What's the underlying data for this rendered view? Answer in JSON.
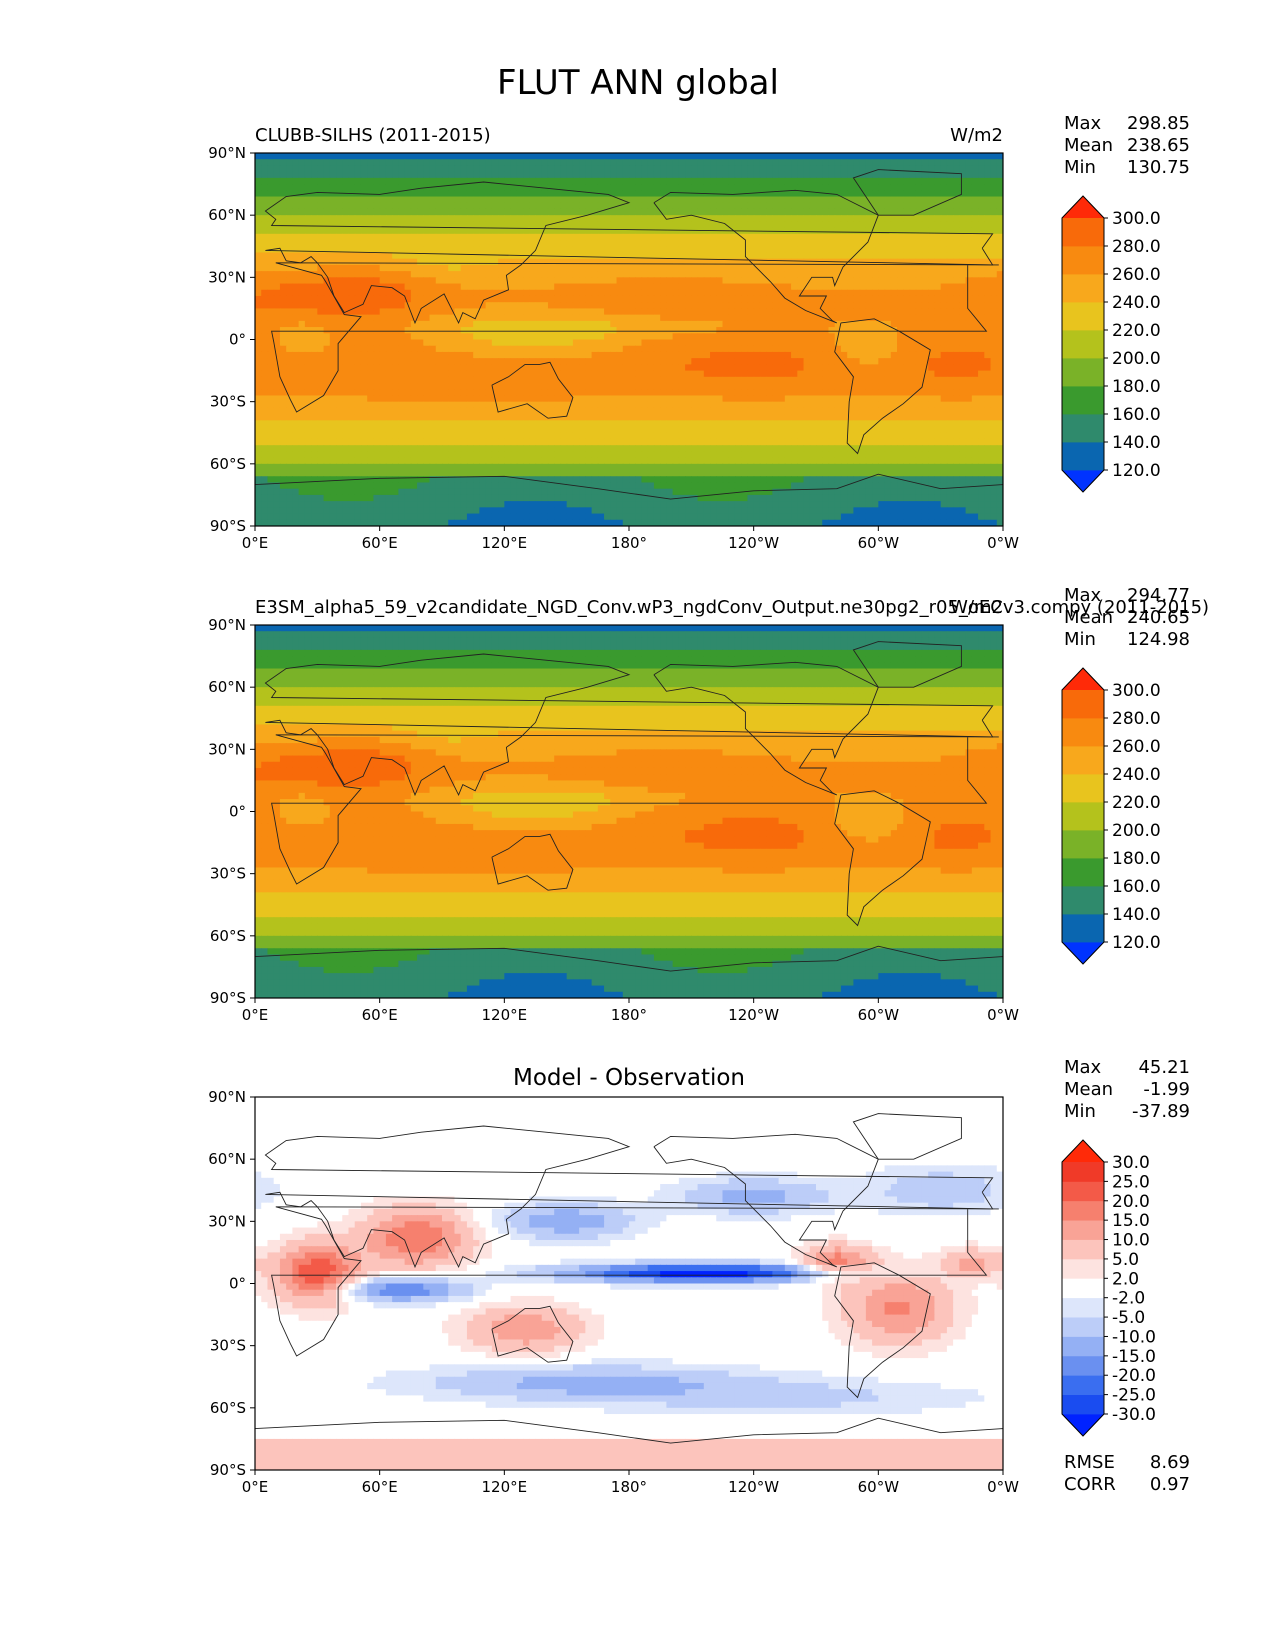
{
  "figure": {
    "title": "FLUT ANN global"
  },
  "chart_data": [
    {
      "type": "heatmap",
      "title_left": "CLUBB-SILHS (2011-2015)",
      "title_right": "W/m2",
      "stats": {
        "max_label": "Max",
        "max": "298.85",
        "mean_label": "Mean",
        "mean": "238.65",
        "min_label": "Min",
        "min": "130.75"
      },
      "colorbar": {
        "levels": [
          "120.0",
          "140.0",
          "160.0",
          "180.0",
          "200.0",
          "220.0",
          "240.0",
          "260.0",
          "280.0",
          "300.0"
        ],
        "colors": [
          "#0033ff",
          "#0a66b0",
          "#2f8a6c",
          "#3a9a2e",
          "#7ab228",
          "#b4c21c",
          "#e8c41e",
          "#f8a81c",
          "#f88a10",
          "#f86a0a",
          "#ff2a08"
        ]
      },
      "lat_ticks": [
        "90°N",
        "60°N",
        "30°N",
        "0°",
        "30°S",
        "60°S",
        "90°S"
      ],
      "lon_ticks": [
        "0°E",
        "60°E",
        "120°E",
        "180°",
        "120°W",
        "60°W",
        "0°W"
      ]
    },
    {
      "type": "heatmap",
      "title_left": "E3SM_alpha5_59_v2candidate_NGD_Conv.wP3_ngdConv_Output.ne30pg2_r05_oECv3.compy (2011-2015)",
      "title_right": "W/m2",
      "stats": {
        "max_label": "Max",
        "max": "294.77",
        "mean_label": "Mean",
        "mean": "240.65",
        "min_label": "Min",
        "min": "124.98"
      },
      "colorbar": {
        "levels": [
          "120.0",
          "140.0",
          "160.0",
          "180.0",
          "200.0",
          "220.0",
          "240.0",
          "260.0",
          "280.0",
          "300.0"
        ],
        "colors": [
          "#0033ff",
          "#0a66b0",
          "#2f8a6c",
          "#3a9a2e",
          "#7ab228",
          "#b4c21c",
          "#e8c41e",
          "#f8a81c",
          "#f88a10",
          "#f86a0a",
          "#ff2a08"
        ]
      },
      "lat_ticks": [
        "90°N",
        "60°N",
        "30°N",
        "0°",
        "30°S",
        "60°S",
        "90°S"
      ],
      "lon_ticks": [
        "0°E",
        "60°E",
        "120°E",
        "180°",
        "120°W",
        "60°W",
        "0°W"
      ]
    },
    {
      "type": "heatmap",
      "title_center": "Model - Observation",
      "stats": {
        "max_label": "Max",
        "max": "45.21",
        "mean_label": "Mean",
        "mean": "-1.99",
        "min_label": "Min",
        "min": "-37.89"
      },
      "metrics": {
        "rmse_label": "RMSE",
        "rmse": "8.69",
        "corr_label": "CORR",
        "corr": "0.97"
      },
      "colorbar": {
        "levels": [
          "-30.0",
          "-25.0",
          "-20.0",
          "-15.0",
          "-10.0",
          "-5.0",
          "-2.0",
          "2.0",
          "5.0",
          "10.0",
          "15.0",
          "20.0",
          "25.0",
          "30.0"
        ],
        "colors": [
          "#0022ff",
          "#1a4cf0",
          "#3a6ef0",
          "#6a90f0",
          "#94b0f4",
          "#bccdf8",
          "#dde6fb",
          "#ffffff",
          "#fde3e0",
          "#fcc4bc",
          "#f9a396",
          "#f6806e",
          "#f35a48",
          "#f03a28",
          "#ff2a08"
        ]
      },
      "lat_ticks": [
        "90°N",
        "60°N",
        "30°N",
        "0°",
        "30°S",
        "60°S",
        "90°S"
      ],
      "lon_ticks": [
        "0°E",
        "60°E",
        "120°E",
        "180°",
        "120°W",
        "60°W",
        "0°W"
      ]
    }
  ]
}
